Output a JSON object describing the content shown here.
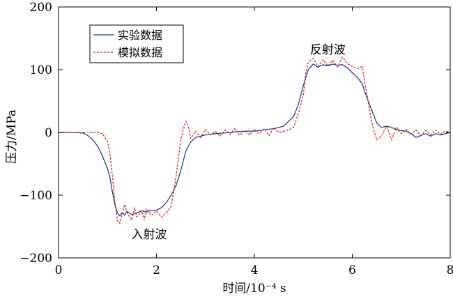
{
  "chart_data": {
    "type": "line",
    "title": "",
    "xlabel": "时间/10⁻⁴ s",
    "ylabel": "压力/MPa",
    "xlim": [
      0,
      8
    ],
    "ylim": [
      -200,
      200
    ],
    "xticks": [
      0,
      2,
      4,
      6,
      8
    ],
    "xtick_labels": [
      "0",
      "2",
      "4",
      "6",
      "8"
    ],
    "yticks": [
      -200,
      -100,
      0,
      100,
      200
    ],
    "ytick_labels": [
      "−200",
      "−100",
      "0",
      "100",
      "200"
    ],
    "grid": false,
    "legend": "top-left",
    "annotations": [
      {
        "text": "入射波",
        "x": 1.85,
        "y": -162
      },
      {
        "text": "反射波",
        "x": 5.5,
        "y": 132
      }
    ],
    "series": [
      {
        "name": "实验数据",
        "color": "#1f3f8f",
        "style": "solid",
        "points": [
          [
            0,
            0
          ],
          [
            0.3,
            0
          ],
          [
            0.5,
            -1
          ],
          [
            0.6,
            -5
          ],
          [
            0.7,
            -12
          ],
          [
            0.8,
            -22
          ],
          [
            0.9,
            -38
          ],
          [
            1.0,
            -58
          ],
          [
            1.05,
            -72
          ],
          [
            1.1,
            -95
          ],
          [
            1.15,
            -115
          ],
          [
            1.2,
            -128
          ],
          [
            1.25,
            -133
          ],
          [
            1.3,
            -128
          ],
          [
            1.35,
            -132
          ],
          [
            1.4,
            -126
          ],
          [
            1.5,
            -131
          ],
          [
            1.6,
            -128
          ],
          [
            1.7,
            -125
          ],
          [
            1.8,
            -127
          ],
          [
            1.9,
            -124
          ],
          [
            2.0,
            -124
          ],
          [
            2.1,
            -120
          ],
          [
            2.2,
            -112
          ],
          [
            2.3,
            -100
          ],
          [
            2.4,
            -85
          ],
          [
            2.5,
            -60
          ],
          [
            2.6,
            -30
          ],
          [
            2.7,
            -15
          ],
          [
            2.8,
            -8
          ],
          [
            3.0,
            -4
          ],
          [
            3.2,
            -2
          ],
          [
            3.5,
            0
          ],
          [
            3.8,
            2
          ],
          [
            4.0,
            2
          ],
          [
            4.2,
            4
          ],
          [
            4.4,
            6
          ],
          [
            4.6,
            10
          ],
          [
            4.7,
            18
          ],
          [
            4.8,
            25
          ],
          [
            4.9,
            45
          ],
          [
            5.0,
            75
          ],
          [
            5.1,
            100
          ],
          [
            5.2,
            109
          ],
          [
            5.3,
            104
          ],
          [
            5.4,
            108
          ],
          [
            5.5,
            106
          ],
          [
            5.6,
            109
          ],
          [
            5.7,
            107
          ],
          [
            5.8,
            108
          ],
          [
            5.9,
            103
          ],
          [
            6.0,
            95
          ],
          [
            6.1,
            88
          ],
          [
            6.2,
            78
          ],
          [
            6.3,
            55
          ],
          [
            6.4,
            35
          ],
          [
            6.5,
            15
          ],
          [
            6.6,
            8
          ],
          [
            6.7,
            10
          ],
          [
            6.8,
            8
          ],
          [
            6.9,
            5
          ],
          [
            7.0,
            3
          ],
          [
            7.1,
            2
          ],
          [
            7.2,
            -2
          ],
          [
            7.3,
            -8
          ],
          [
            7.4,
            -5
          ],
          [
            7.5,
            -2
          ],
          [
            7.6,
            -6
          ],
          [
            7.7,
            -2
          ],
          [
            7.8,
            -4
          ],
          [
            7.9,
            -2
          ],
          [
            8.0,
            0
          ]
        ]
      },
      {
        "name": "模拟数据",
        "color": "#d42020",
        "style": "dashed",
        "points": [
          [
            0,
            0
          ],
          [
            0.5,
            0
          ],
          [
            0.8,
            0
          ],
          [
            0.9,
            -2
          ],
          [
            1.0,
            -15
          ],
          [
            1.05,
            -35
          ],
          [
            1.1,
            -70
          ],
          [
            1.15,
            -110
          ],
          [
            1.2,
            -140
          ],
          [
            1.25,
            -145
          ],
          [
            1.3,
            -130
          ],
          [
            1.35,
            -115
          ],
          [
            1.4,
            -128
          ],
          [
            1.5,
            -140
          ],
          [
            1.55,
            -120
          ],
          [
            1.6,
            -135
          ],
          [
            1.7,
            -125
          ],
          [
            1.75,
            -140
          ],
          [
            1.8,
            -122
          ],
          [
            1.9,
            -132
          ],
          [
            2.0,
            -125
          ],
          [
            2.1,
            -135
          ],
          [
            2.2,
            -128
          ],
          [
            2.3,
            -118
          ],
          [
            2.35,
            -95
          ],
          [
            2.4,
            -70
          ],
          [
            2.45,
            -40
          ],
          [
            2.5,
            -10
          ],
          [
            2.55,
            5
          ],
          [
            2.6,
            18
          ],
          [
            2.65,
            10
          ],
          [
            2.7,
            -10
          ],
          [
            2.8,
            2
          ],
          [
            2.9,
            -8
          ],
          [
            3.0,
            5
          ],
          [
            3.1,
            -4
          ],
          [
            3.2,
            2
          ],
          [
            3.3,
            -6
          ],
          [
            3.4,
            4
          ],
          [
            3.5,
            -3
          ],
          [
            3.6,
            6
          ],
          [
            3.7,
            -5
          ],
          [
            3.8,
            3
          ],
          [
            3.9,
            -4
          ],
          [
            4.0,
            5
          ],
          [
            4.1,
            -2
          ],
          [
            4.2,
            6
          ],
          [
            4.3,
            -5
          ],
          [
            4.4,
            8
          ],
          [
            4.5,
            0
          ],
          [
            4.6,
            2
          ],
          [
            4.7,
            4
          ],
          [
            4.8,
            8
          ],
          [
            4.9,
            30
          ],
          [
            5.0,
            60
          ],
          [
            5.05,
            95
          ],
          [
            5.1,
            112
          ],
          [
            5.2,
            118
          ],
          [
            5.3,
            105
          ],
          [
            5.4,
            116
          ],
          [
            5.5,
            106
          ],
          [
            5.6,
            115
          ],
          [
            5.7,
            104
          ],
          [
            5.8,
            120
          ],
          [
            5.9,
            110
          ],
          [
            6.0,
            105
          ],
          [
            6.1,
            102
          ],
          [
            6.2,
            105
          ],
          [
            6.3,
            60
          ],
          [
            6.4,
            15
          ],
          [
            6.5,
            -12
          ],
          [
            6.6,
            -5
          ],
          [
            6.7,
            10
          ],
          [
            6.8,
            -12
          ],
          [
            6.9,
            8
          ],
          [
            7.0,
            -2
          ],
          [
            7.1,
            5
          ],
          [
            7.2,
            -3
          ],
          [
            7.3,
            4
          ],
          [
            7.4,
            -5
          ],
          [
            7.5,
            3
          ],
          [
            7.6,
            -4
          ],
          [
            7.7,
            4
          ],
          [
            7.8,
            -3
          ],
          [
            7.9,
            2
          ],
          [
            8.0,
            0
          ]
        ]
      }
    ]
  }
}
